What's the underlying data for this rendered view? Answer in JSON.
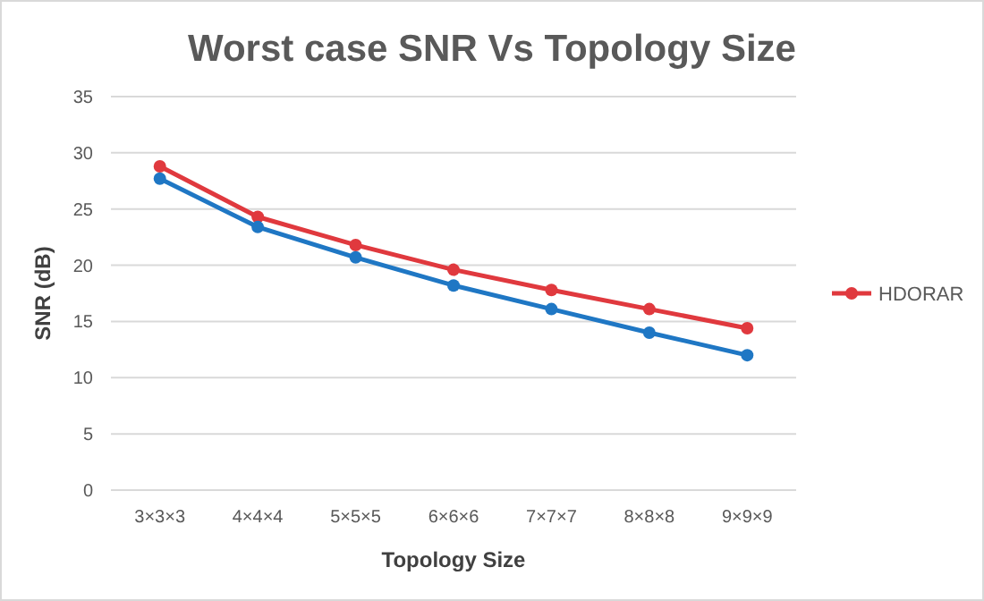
{
  "chart_data": {
    "type": "line",
    "title": "Worst case SNR Vs Topology Size",
    "xlabel": "Topology Size",
    "ylabel": "SNR (dB)",
    "categories": [
      "3×3×3",
      "4×4×4",
      "5×5×5",
      "6×6×6",
      "7×7×7",
      "8×8×8",
      "9×9×9"
    ],
    "series": [
      {
        "name": "HDORAR",
        "color": "#e0393e",
        "values": [
          28.8,
          24.3,
          21.8,
          19.6,
          17.8,
          16.1,
          14.4
        ]
      },
      {
        "color": "#1f77c4",
        "values": [
          27.7,
          23.4,
          20.7,
          18.2,
          16.1,
          14.0,
          12.0
        ]
      }
    ],
    "ylim": [
      0,
      35
    ],
    "yticks": [
      0,
      5,
      10,
      15,
      20,
      25,
      30,
      35
    ],
    "grid": "y",
    "legend": "right",
    "marker": "circle",
    "line_style": "solid"
  }
}
